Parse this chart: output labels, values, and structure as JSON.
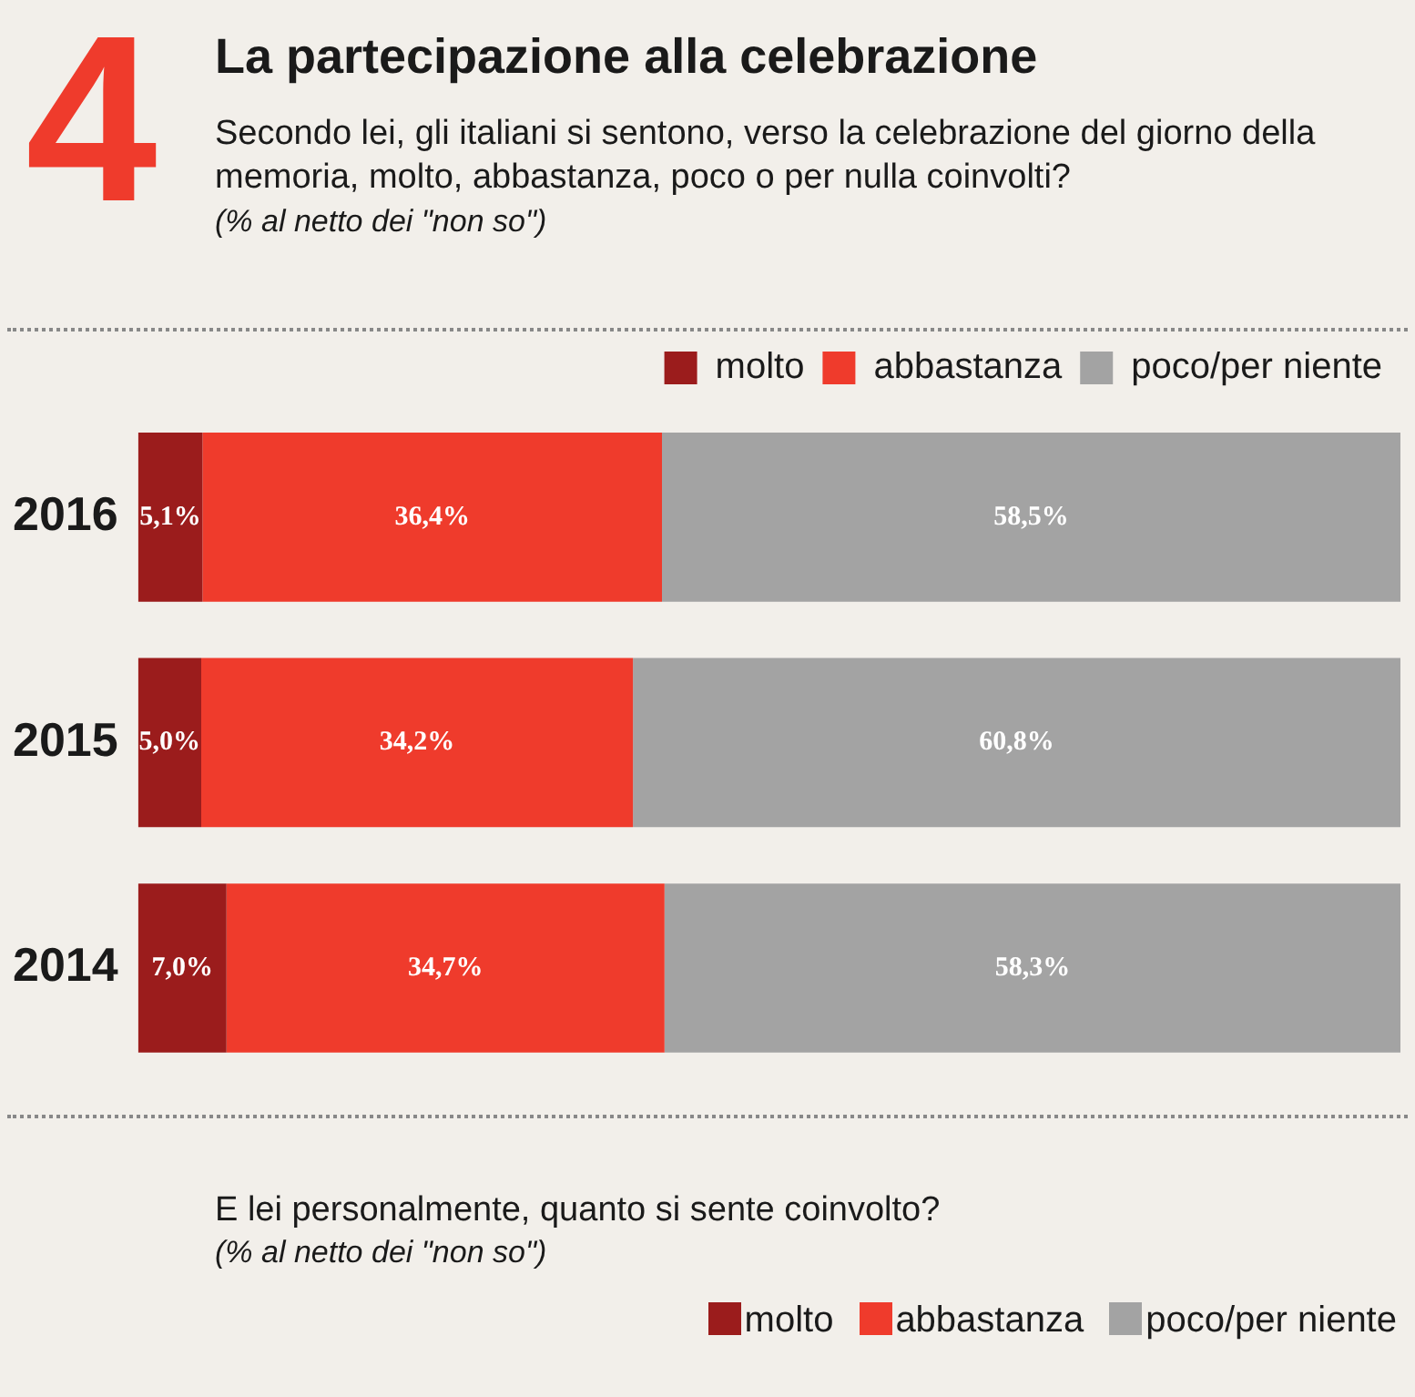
{
  "chart_data": {
    "type": "bar",
    "orientation": "horizontal",
    "stacked": true,
    "title": "La partecipazione alla celebrazione",
    "subtitle": "Secondo lei, gli italiani si sentono, verso la celebrazione del giorno della memoria, molto, abbastanza, poco o per nulla coinvolti?",
    "annotations": [
      "4",
      "(% al netto dei \"non so\")",
      "E lei personalmente, quanto si sente coinvolto?",
      "(% al netto dei \"non so\")"
    ],
    "categories": [
      "2016",
      "2015",
      "2014"
    ],
    "xlim": [
      0,
      100
    ],
    "tick_labels": "y",
    "legend": "top right",
    "series": [
      {
        "name": "molto",
        "color": "#9b1c1c",
        "values": [
          5.1,
          5.0,
          7.0
        ],
        "value_labels": [
          "5,1%",
          "5,0%",
          "7,0%"
        ]
      },
      {
        "name": "abbastanza",
        "color": "#ef3b2c",
        "values": [
          36.4,
          34.2,
          34.7
        ],
        "value_labels": [
          "36,4%",
          "34,2%",
          "34,7%"
        ]
      },
      {
        "name": "poco/per niente",
        "color": "#a3a3a3",
        "values": [
          58.5,
          60.8,
          58.3
        ],
        "value_labels": [
          "58,5%",
          "60,8%",
          "58,3%"
        ]
      }
    ]
  }
}
